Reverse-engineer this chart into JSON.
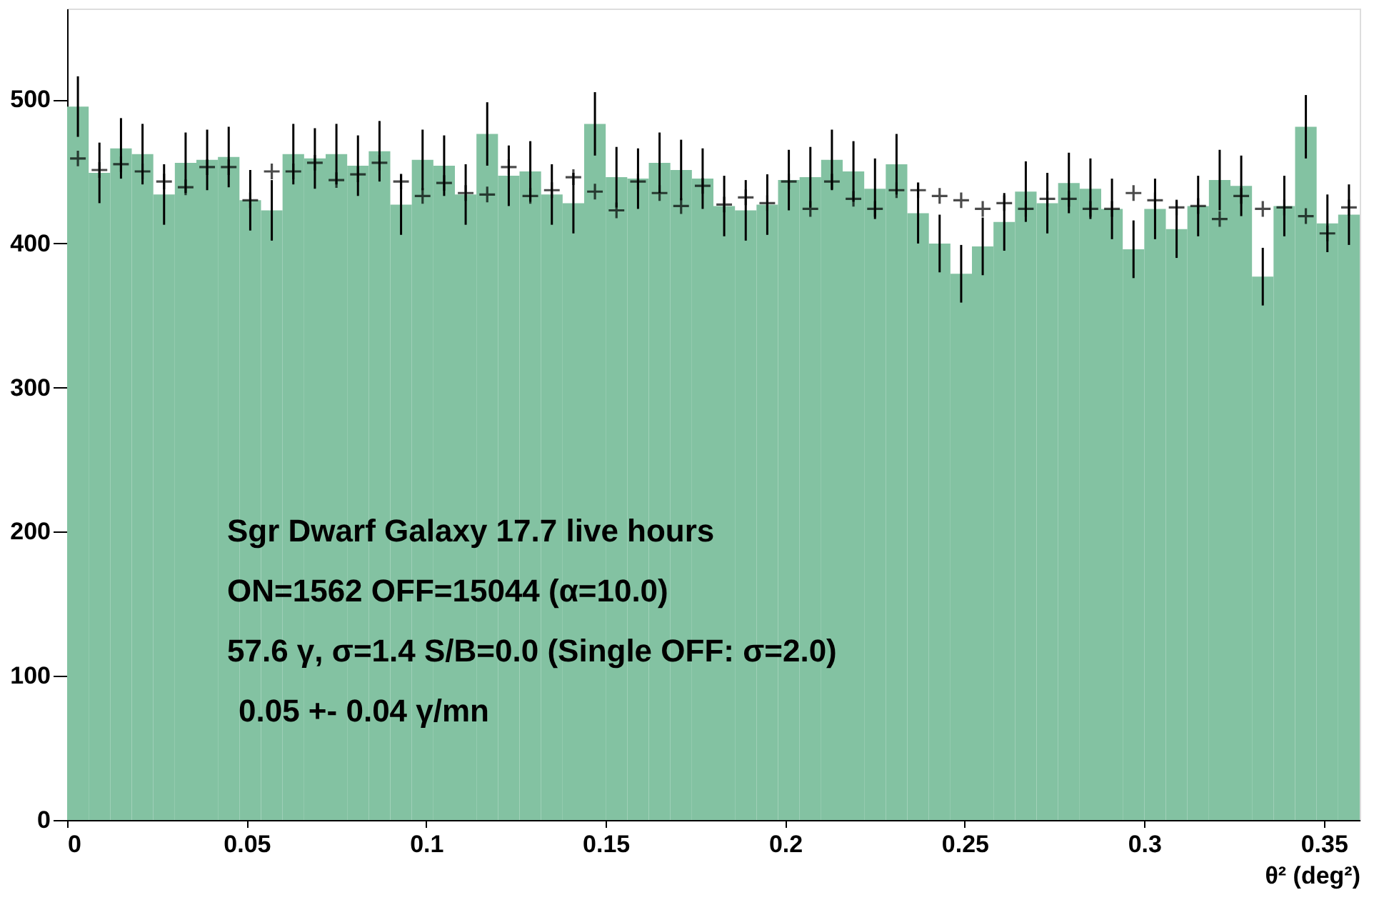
{
  "chart_data": {
    "type": "histogram",
    "xlabel": "θ² (deg²)",
    "bins": [
      0,
      0.006,
      0.012,
      0.018,
      0.024,
      0.03,
      0.036,
      0.042,
      0.048,
      0.054,
      0.06,
      0.066,
      0.072,
      0.078,
      0.084,
      0.09,
      0.096,
      0.102,
      0.108,
      0.114,
      0.12,
      0.126,
      0.132,
      0.138,
      0.144,
      0.15,
      0.156,
      0.162,
      0.168,
      0.174,
      0.18,
      0.186,
      0.192,
      0.198,
      0.204,
      0.21,
      0.216,
      0.222,
      0.228,
      0.234,
      0.24,
      0.246,
      0.252,
      0.258,
      0.264,
      0.27,
      0.276,
      0.282,
      0.288,
      0.294,
      0.3,
      0.306,
      0.312,
      0.318,
      0.324,
      0.33,
      0.336,
      0.342,
      0.348,
      0.354,
      0.36
    ],
    "values": [
      495,
      449,
      466,
      462,
      434,
      456,
      458,
      460,
      430,
      423,
      462,
      459,
      462,
      454,
      464,
      427,
      458,
      454,
      434,
      476,
      447,
      450,
      434,
      428,
      483,
      446,
      445,
      456,
      451,
      445,
      426,
      423,
      427,
      444,
      446,
      458,
      450,
      438,
      455,
      421,
      400,
      379,
      398,
      415,
      436,
      428,
      442,
      438,
      424,
      396,
      424,
      410,
      426,
      444,
      440,
      377,
      426,
      481,
      414,
      420
    ],
    "errors": [
      21,
      21,
      21,
      21,
      21,
      21,
      21,
      21,
      21,
      21,
      21,
      21,
      21,
      21,
      21,
      21,
      21,
      21,
      21,
      22,
      21,
      21,
      21,
      21,
      22,
      21,
      21,
      21,
      21,
      21,
      21,
      21,
      21,
      21,
      21,
      21,
      21,
      21,
      21,
      21,
      20,
      20,
      20,
      20,
      21,
      21,
      21,
      21,
      21,
      20,
      21,
      20,
      21,
      21,
      21,
      20,
      21,
      22,
      20,
      21
    ],
    "color": "#83c2a2",
    "series": [
      {
        "type": "scatter",
        "marker": "cross",
        "color": "#000000",
        "x": [
          0.003,
          0.009,
          0.015,
          0.021,
          0.027,
          0.033,
          0.039,
          0.045,
          0.051,
          0.057,
          0.063,
          0.069,
          0.075,
          0.081,
          0.087,
          0.093,
          0.099,
          0.105,
          0.111,
          0.117,
          0.123,
          0.129,
          0.135,
          0.141,
          0.147,
          0.153,
          0.159,
          0.165,
          0.171,
          0.177,
          0.183,
          0.189,
          0.195,
          0.201,
          0.207,
          0.213,
          0.219,
          0.225,
          0.231,
          0.237,
          0.243,
          0.249,
          0.255,
          0.261,
          0.267,
          0.273,
          0.279,
          0.285,
          0.291,
          0.297,
          0.303,
          0.309,
          0.315,
          0.321,
          0.327,
          0.333,
          0.339,
          0.345,
          0.351,
          0.357
        ],
        "values": [
          459,
          451,
          455,
          450,
          443,
          439,
          453,
          453,
          430,
          450,
          450,
          456,
          444,
          448,
          456,
          443,
          433,
          442,
          435,
          434,
          453,
          433,
          437,
          446,
          436,
          423,
          443,
          435,
          426,
          440,
          427,
          432,
          428,
          443,
          424,
          443,
          431,
          424,
          437,
          437,
          433,
          430,
          424,
          428,
          424,
          431,
          431,
          424,
          424,
          435,
          430,
          425,
          426,
          417,
          433,
          424,
          425,
          419,
          407,
          425
        ]
      }
    ],
    "xlim": [
      0,
      0.36
    ],
    "xticks": [
      0,
      0.05,
      0.1,
      0.15,
      0.2,
      0.25,
      0.3,
      0.35
    ],
    "ylim": [
      0,
      563
    ],
    "yticks": [
      0,
      100,
      200,
      300,
      400,
      500
    ],
    "grid": false,
    "annotations": [
      "Sgr Dwarf Galaxy 17.7 live hours",
      "ON=1562 OFF=15044  (α=10.0)",
      "57.6 γ, σ=1.4 S/B=0.0  (Single OFF: σ=2.0)",
      "0.05 +- 0.04 γ/mn"
    ]
  }
}
